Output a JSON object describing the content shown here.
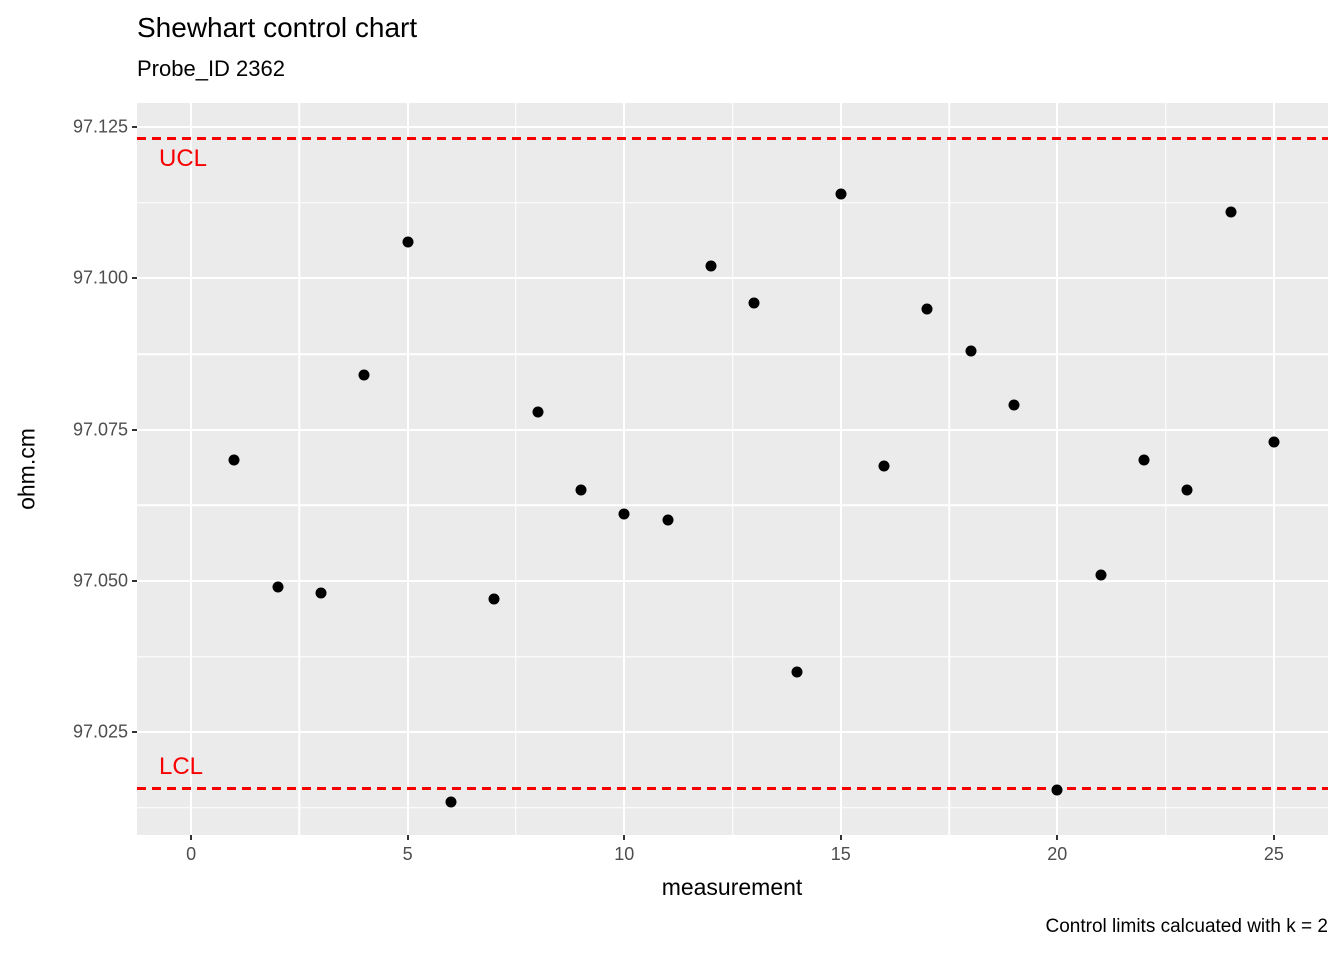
{
  "header": {
    "title": "Shewhart control chart",
    "subtitle": "Probe_ID 2362"
  },
  "caption": "Control limits calcuated with k = 2",
  "colors": {
    "panel_background": "#EBEBEB",
    "gridline": "#FFFFFF",
    "point": "#000000",
    "control_limit": "#F80000",
    "tick_label": "#4D4D4D",
    "text": "#000000"
  },
  "chart_data": {
    "type": "scatter",
    "title": "Shewhart control chart",
    "subtitle": "Probe_ID 2362",
    "xlabel": "measurement",
    "ylabel": "ohm.cm",
    "caption": "Control limits calcuated with k = 2",
    "grid": true,
    "legend": false,
    "x_domain": [
      -1.25,
      26.25
    ],
    "y_domain": [
      97.008,
      97.129
    ],
    "x_ticks": [
      0,
      5,
      10,
      15,
      20,
      25
    ],
    "x_tick_labels": [
      "0",
      "5",
      "10",
      "15",
      "20",
      "25"
    ],
    "x_minor_ticks": [
      2.5,
      7.5,
      12.5,
      17.5,
      22.5
    ],
    "y_ticks": [
      97.125,
      97.1,
      97.075,
      97.05,
      97.025
    ],
    "y_tick_labels": [
      "97.125",
      "97.100",
      "97.075",
      "97.050",
      "97.025"
    ],
    "y_minor_ticks": [
      97.1125,
      97.0875,
      97.0625,
      97.0375,
      97.0125
    ],
    "x": [
      1,
      2,
      3,
      4,
      5,
      6,
      7,
      8,
      9,
      10,
      11,
      12,
      13,
      14,
      15,
      16,
      17,
      18,
      19,
      20,
      21,
      22,
      23,
      24,
      25
    ],
    "y": [
      97.07,
      97.049,
      97.048,
      97.084,
      97.106,
      97.0135,
      97.047,
      97.078,
      97.065,
      97.061,
      97.06,
      97.102,
      97.096,
      97.035,
      97.114,
      97.069,
      97.095,
      97.088,
      97.079,
      97.0155,
      97.051,
      97.07,
      97.065,
      97.111,
      97.073
    ],
    "ucl": {
      "label": "UCL",
      "value": 97.1232
    },
    "lcl": {
      "label": "LCL",
      "value": 97.0157
    }
  }
}
